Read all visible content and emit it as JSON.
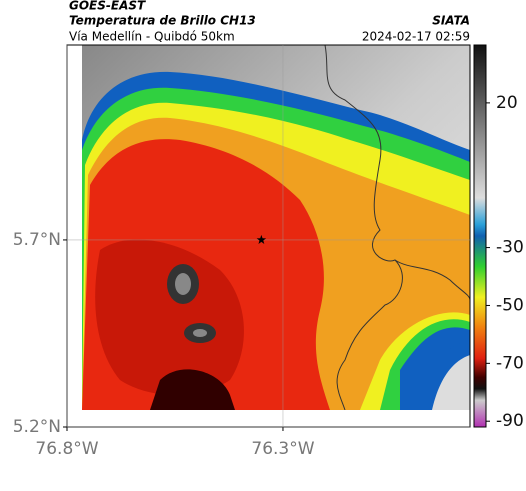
{
  "chart_data": {
    "type": "map",
    "title": "GOES-EAST",
    "subtitle": "Temperatura de Brillo CH13",
    "caption": "Vía Medellín - Quibdó 50km",
    "source": "SIATA",
    "timestamp": "2024-02-17 02:59",
    "xlim": [
      -76.8,
      -75.867
    ],
    "ylim": [
      5.2,
      6.221
    ],
    "xticks": [
      {
        "value": -76.8,
        "label": "76.8°W"
      },
      {
        "value": -76.3,
        "label": "76.3°W"
      }
    ],
    "yticks": [
      {
        "value": 5.2,
        "label": "5.2°N"
      },
      {
        "value": 5.7,
        "label": "5.7°N"
      }
    ],
    "grid": true,
    "marker": {
      "lon": -76.35,
      "lat": 5.7
    },
    "colorbar": {
      "clim": [
        -92,
        40
      ],
      "ticks": [
        20,
        -30,
        -50,
        -70,
        -90
      ]
    }
  }
}
